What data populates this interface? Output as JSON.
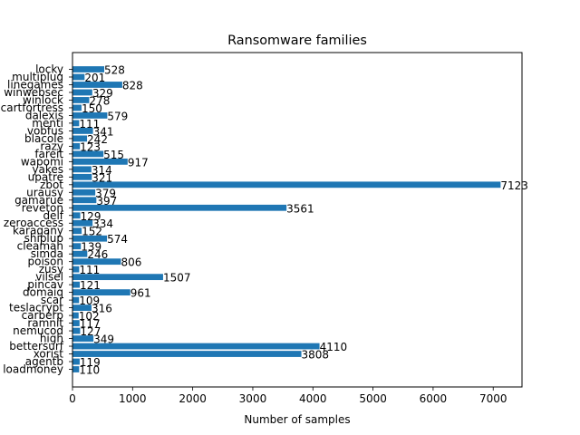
{
  "chart_data": {
    "type": "bar",
    "orientation": "horizontal",
    "title": "Ransomware families",
    "xlabel": "Number of samples",
    "ylabel": "",
    "xlim": [
      0,
      7479
    ],
    "xticks": [
      0,
      1000,
      2000,
      3000,
      4000,
      5000,
      6000,
      7000
    ],
    "grid": false,
    "bar_color": "#1f77b4",
    "categories": [
      "locky",
      "multiplug",
      "linegames",
      "winwebsec",
      "winlock",
      "cartfortress",
      "dalexis",
      "menti",
      "vobfus",
      "blacole",
      "razy",
      "fareit",
      "wapomi",
      "yakes",
      "upatre",
      "zbot",
      "urausy",
      "gamarue",
      "reveton",
      "delf",
      "zeroaccess",
      "karagany",
      "shiplup",
      "cleaman",
      "simda",
      "poison",
      "zusy",
      "vilsel",
      "pincav",
      "domaiq",
      "scar",
      "teslacrypt",
      "carberp",
      "ramnit",
      "nemucod",
      "high",
      "bettersurf",
      "xorist",
      "agentb",
      "loadmoney"
    ],
    "values": [
      528,
      201,
      828,
      329,
      278,
      150,
      579,
      111,
      341,
      242,
      123,
      515,
      917,
      314,
      321,
      7123,
      379,
      397,
      3561,
      129,
      334,
      152,
      574,
      139,
      246,
      806,
      111,
      1507,
      121,
      961,
      109,
      316,
      102,
      117,
      127,
      349,
      4110,
      3808,
      119,
      110
    ]
  }
}
